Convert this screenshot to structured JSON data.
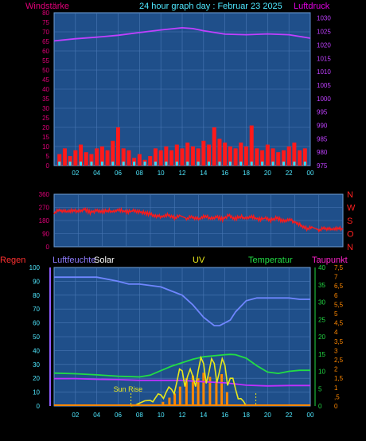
{
  "title": "24 hour graph day : Februar 23 2025",
  "colors": {
    "background": "#000000",
    "plot_bg": "#1f4f8a",
    "grid": "#4a78b5",
    "wind": "#ff1a1a",
    "gust_cyan": "#33e0ff",
    "pressure": "#c040ff",
    "direction": "#ff1a1a",
    "solar": "#6f86ff",
    "uv": "#e8e81a",
    "temperature": "#22dd44",
    "taupunkt": "#c030ff",
    "humidity_axis": "#8f5cff",
    "regen": "#ff2020"
  },
  "chart_data": [
    {
      "type": "bar",
      "id": "wind-pressure",
      "ylabel_left": "Windstärke",
      "ylabel_right": "Luftdruck",
      "left_ticks": [
        0,
        5,
        10,
        15,
        20,
        25,
        30,
        35,
        40,
        45,
        50,
        55,
        60,
        65,
        70,
        75,
        80
      ],
      "right_ticks": [
        975,
        980,
        985,
        990,
        995,
        1000,
        1005,
        1010,
        1015,
        1020,
        1025,
        1030
      ],
      "x_ticks": [
        "02",
        "04",
        "06",
        "08",
        "10",
        "12",
        "14",
        "16",
        "18",
        "20",
        "22",
        "00"
      ],
      "wind_series": {
        "x": [
          0.5,
          1,
          1.5,
          2,
          2.5,
          3,
          3.5,
          4,
          4.5,
          5,
          5.5,
          6,
          6.5,
          7,
          7.5,
          8,
          8.5,
          9,
          9.5,
          10,
          10.5,
          11,
          11.5,
          12,
          12.5,
          13,
          13.5,
          14,
          14.5,
          15,
          15.5,
          16,
          16.5,
          17,
          17.5,
          18,
          18.5,
          19,
          19.5,
          20,
          20.5,
          21,
          21.5,
          22,
          22.5,
          23,
          23.5
        ],
        "values": [
          6,
          9,
          5,
          8,
          11,
          7,
          6,
          9,
          10,
          8,
          13,
          20,
          9,
          8,
          4,
          6,
          3,
          5,
          9,
          8,
          10,
          8,
          11,
          9,
          12,
          10,
          9,
          13,
          11,
          20,
          14,
          12,
          10,
          9,
          12,
          10,
          21,
          9,
          8,
          11,
          9,
          7,
          8,
          10,
          12,
          8,
          9
        ]
      },
      "pressure_series": {
        "x": [
          0,
          2,
          4,
          6,
          8,
          10,
          12,
          13,
          14,
          16,
          18,
          20,
          22,
          24
        ],
        "values": [
          1021.5,
          1022.3,
          1022.9,
          1023.6,
          1024.6,
          1025.6,
          1026.4,
          1026.1,
          1025.3,
          1024.0,
          1023.8,
          1024.1,
          1023.8,
          1022.5
        ]
      }
    },
    {
      "type": "line",
      "id": "wind-direction",
      "left_ticks": [
        0,
        90,
        180,
        270,
        360
      ],
      "right_labels": [
        "N",
        "W",
        "S",
        "O",
        "N"
      ],
      "x": [
        0,
        0.5,
        1,
        1.5,
        2,
        2.5,
        3,
        3.5,
        4,
        4.5,
        5,
        5.5,
        6,
        6.5,
        7,
        7.5,
        8,
        8.5,
        9,
        9.5,
        10,
        10.5,
        11,
        11.5,
        12,
        12.5,
        13,
        13.5,
        14,
        14.5,
        15,
        15.5,
        16,
        16.5,
        17,
        17.5,
        18,
        18.5,
        19,
        19.5,
        20,
        20.5,
        21,
        21.5,
        22,
        22.5,
        23,
        23.5,
        24
      ],
      "values": [
        235,
        252,
        240,
        248,
        244,
        258,
        236,
        246,
        241,
        249,
        237,
        251,
        238,
        246,
        242,
        232,
        224,
        212,
        206,
        220,
        198,
        212,
        195,
        205,
        188,
        210,
        196,
        206,
        188,
        214,
        192,
        208,
        190,
        204,
        186,
        196,
        182,
        198,
        176,
        190,
        168,
        148,
        124,
        132,
        116,
        128,
        118,
        126,
        122
      ]
    },
    {
      "type": "line",
      "id": "solar-uv-temp",
      "ylabel_regen": "Regen",
      "ylabel_humidity": "Luftfeuchte",
      "label_solar": "Solar",
      "label_uv": "UV",
      "label_temperature": "Temperatur",
      "label_taupunkt": "Taupunkt",
      "annotation": "Sun Rise",
      "left_ticks": [
        0,
        10,
        20,
        30,
        40,
        50,
        60,
        70,
        80,
        90,
        100
      ],
      "temp_ticks": [
        0,
        5,
        10,
        15,
        20,
        25,
        30,
        35,
        40
      ],
      "uv_ticks": [
        "0",
        ",5",
        "1",
        "1,5",
        "2",
        "2,5",
        "3",
        "3,5",
        "4",
        "4,5",
        "5",
        "5,5",
        "6",
        "6,5",
        "7",
        "7,5"
      ],
      "x_ticks": [
        "02",
        "04",
        "06",
        "08",
        "10",
        "12",
        "14",
        "16",
        "18",
        "20",
        "22",
        "00"
      ],
      "humidity_series": {
        "x": [
          0,
          2,
          4,
          6,
          7,
          8,
          9,
          10,
          11,
          12,
          13,
          14,
          15,
          15.5,
          16,
          16.5,
          17,
          18,
          19,
          20,
          21,
          22,
          23,
          24
        ],
        "values": [
          93,
          93,
          93,
          90,
          88,
          88,
          87,
          86,
          83,
          80,
          73,
          64,
          58,
          58,
          60,
          62,
          68,
          76,
          78,
          78,
          78,
          78,
          77,
          77
        ]
      },
      "temperature_series": {
        "x": [
          0,
          2,
          4,
          6,
          7,
          8,
          9,
          10,
          11,
          12,
          13,
          14,
          15,
          16,
          16.5,
          17,
          18,
          19,
          20,
          21,
          22,
          23,
          24
        ],
        "values": [
          9.5,
          9.3,
          9.0,
          8.6,
          8.5,
          8.4,
          8.9,
          10.2,
          11.5,
          12.5,
          13.5,
          14.2,
          14.5,
          14.8,
          14.9,
          14.8,
          13.8,
          11.6,
          9.8,
          9.4,
          10.0,
          10.3,
          10.3
        ]
      },
      "taupunkt_series": {
        "x": [
          0,
          2,
          4,
          6,
          8,
          10,
          12,
          14,
          16,
          18,
          20,
          22,
          24
        ],
        "values": [
          7.9,
          7.9,
          7.7,
          7.6,
          7.4,
          7.4,
          7.4,
          7.0,
          6.7,
          6.0,
          5.8,
          5.9,
          5.9
        ]
      },
      "uv_series": {
        "x": [
          7.2,
          8,
          9,
          9.5,
          10,
          10.5,
          11,
          11.5,
          12,
          12.5,
          13,
          13.5,
          14,
          14.5,
          15,
          15.5,
          16,
          16.5,
          17,
          17.5,
          18
        ],
        "values": [
          0,
          0.15,
          0.3,
          0.45,
          0.6,
          0.75,
          0.9,
          1.3,
          1.9,
          1.6,
          1.6,
          1.9,
          2.3,
          1.8,
          2.3,
          1.9,
          2.2,
          1.5,
          0.9,
          0.4,
          0
        ]
      },
      "solar_bars": {
        "x": [
          10.2,
          10.8,
          11.3,
          11.8,
          12.4,
          13.0,
          13.5,
          14.0,
          14.6,
          15.2,
          15.7,
          16.2
        ],
        "values": [
          3,
          6,
          9,
          14,
          20,
          22,
          20,
          24,
          21,
          18,
          23,
          10
        ]
      },
      "sunrise_hour": 7.2,
      "sunset_hour": 18.9
    }
  ]
}
